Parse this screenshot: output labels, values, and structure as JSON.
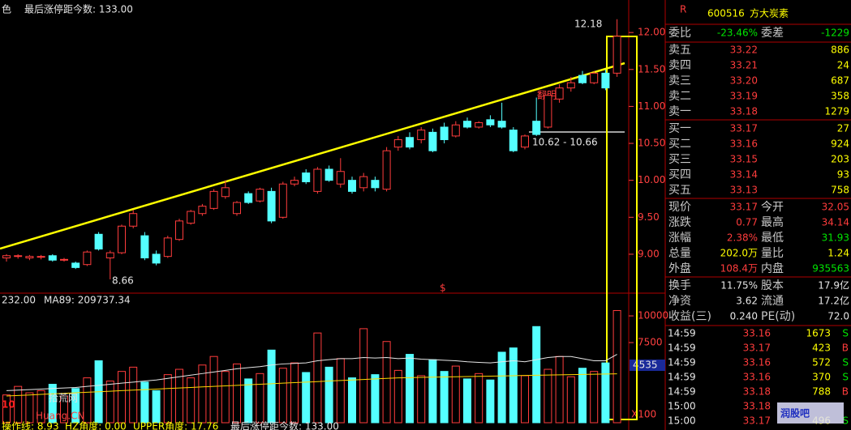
{
  "chart_data": {
    "type": "candlestick",
    "top_prefix": "色",
    "top_label": "最后涨停距今数: 133.00",
    "ylim": [
      8.55,
      12.44
    ],
    "yticks": [
      {
        "value": 12,
        "label": "12.00"
      },
      {
        "value": 11.5,
        "label": "11.50"
      },
      {
        "value": 11,
        "label": "11.00"
      },
      {
        "value": 10.5,
        "label": "10.50"
      },
      {
        "value": 10,
        "label": "10.00"
      },
      {
        "value": 9.5,
        "label": "9.50"
      },
      {
        "value": 9,
        "label": "9.00"
      }
    ],
    "annotations": {
      "high": "12.18",
      "low": "8.66",
      "range": "10.62 - 10.66",
      "mark": "翻明",
      "limit_sign": "$"
    },
    "candles": [
      [
        8.95,
        9.0,
        8.9,
        8.98
      ],
      [
        8.97,
        9.0,
        8.94,
        8.98
      ],
      [
        8.95,
        8.99,
        8.92,
        8.97
      ],
      [
        8.96,
        8.99,
        8.93,
        8.97
      ],
      [
        8.98,
        9.0,
        8.9,
        8.92
      ],
      [
        8.92,
        8.95,
        8.9,
        8.93
      ],
      [
        8.88,
        8.9,
        8.8,
        8.82
      ],
      [
        8.86,
        9.05,
        8.84,
        9.03
      ],
      [
        9.27,
        9.3,
        9.05,
        9.07
      ],
      [
        8.95,
        9.05,
        8.66,
        9.02
      ],
      [
        9.02,
        9.4,
        9.0,
        9.38
      ],
      [
        9.38,
        9.6,
        9.35,
        9.55
      ],
      [
        9.25,
        9.3,
        8.92,
        8.95
      ],
      [
        9.0,
        9.05,
        8.85,
        8.88
      ],
      [
        8.97,
        9.25,
        8.95,
        9.22
      ],
      [
        9.2,
        9.48,
        9.18,
        9.45
      ],
      [
        9.42,
        9.6,
        9.4,
        9.58
      ],
      [
        9.55,
        9.68,
        9.52,
        9.65
      ],
      [
        9.62,
        9.88,
        9.6,
        9.85
      ],
      [
        9.78,
        10.0,
        9.75,
        9.9
      ],
      [
        9.55,
        9.72,
        9.52,
        9.7
      ],
      [
        9.82,
        9.85,
        9.68,
        9.7
      ],
      [
        9.72,
        9.9,
        9.7,
        9.88
      ],
      [
        9.85,
        9.9,
        9.42,
        9.45
      ],
      [
        9.5,
        9.98,
        9.48,
        9.95
      ],
      [
        9.95,
        10.05,
        9.92,
        10.0
      ],
      [
        10.1,
        10.15,
        9.95,
        9.98
      ],
      [
        9.85,
        10.18,
        9.82,
        10.15
      ],
      [
        10.15,
        10.2,
        9.98,
        10.0
      ],
      [
        9.95,
        10.3,
        9.9,
        10.12
      ],
      [
        10.0,
        10.05,
        9.82,
        9.85
      ],
      [
        9.9,
        10.1,
        9.85,
        10.05
      ],
      [
        10.0,
        10.05,
        9.85,
        9.9
      ],
      [
        9.88,
        10.45,
        9.85,
        10.4
      ],
      [
        10.45,
        10.6,
        10.4,
        10.55
      ],
      [
        10.58,
        10.65,
        10.42,
        10.45
      ],
      [
        10.55,
        10.72,
        10.5,
        10.68
      ],
      [
        10.65,
        10.7,
        10.38,
        10.4
      ],
      [
        10.72,
        10.78,
        10.5,
        10.55
      ],
      [
        10.6,
        10.8,
        10.58,
        10.75
      ],
      [
        10.8,
        10.85,
        10.7,
        10.72
      ],
      [
        10.72,
        10.8,
        10.7,
        10.78
      ],
      [
        10.82,
        10.88,
        10.72,
        10.75
      ],
      [
        10.8,
        11.05,
        10.7,
        10.72
      ],
      [
        10.68,
        10.72,
        10.38,
        10.4
      ],
      [
        10.45,
        10.62,
        10.42,
        10.6
      ],
      [
        10.8,
        11.12,
        10.6,
        10.62
      ],
      [
        10.72,
        11.18,
        10.7,
        11.15
      ],
      [
        11.1,
        11.3,
        11.05,
        11.25
      ],
      [
        11.25,
        11.4,
        11.2,
        11.32
      ],
      [
        11.42,
        11.48,
        11.3,
        11.32
      ],
      [
        11.32,
        11.48,
        11.3,
        11.45
      ],
      [
        11.45,
        11.5,
        11.22,
        11.25
      ],
      [
        11.45,
        12.18,
        11.4,
        11.95
      ]
    ],
    "volume": {
      "header_left": "232.00",
      "header_ma": "MA89: 209737.34",
      "ylim": [
        0,
        11900
      ],
      "yticks": [
        10000,
        7500
      ],
      "current": "4535",
      "unit": "X100",
      "values": [
        2600,
        3400,
        2800,
        3000,
        3600,
        2500,
        3200,
        4200,
        5800,
        3900,
        4800,
        5200,
        3800,
        3000,
        4500,
        5000,
        4200,
        5400,
        6200,
        4800,
        5500,
        4100,
        4600,
        6800,
        5100,
        5600,
        4700,
        8400,
        5200,
        6000,
        4200,
        8800,
        4500,
        7600,
        4900,
        6400,
        4400,
        5900,
        4800,
        5300,
        4100,
        4600,
        4000,
        6600,
        7000,
        4400,
        9000,
        5000,
        6200,
        4300,
        5100,
        4800,
        5600,
        10500
      ],
      "ma_white": [
        3000,
        3050,
        3100,
        3150,
        3200,
        3250,
        3300,
        3400,
        3500,
        3600,
        3700,
        3800,
        3900,
        4000,
        4150,
        4300,
        4450,
        4600,
        4750,
        4900,
        5050,
        5150,
        5250,
        5400,
        5500,
        5550,
        5600,
        5800,
        5900,
        6000,
        6000,
        6100,
        6050,
        6100,
        6000,
        6050,
        5950,
        5900,
        5850,
        5800,
        5700,
        5650,
        5600,
        5700,
        5800,
        5700,
        5900,
        6100,
        6200,
        6200,
        6000,
        5800,
        5800,
        6400
      ],
      "ma_yellow": [
        2500,
        2550,
        2600,
        2650,
        2700,
        2750,
        2800,
        2850,
        2900,
        2950,
        3000,
        3050,
        3100,
        3150,
        3200,
        3250,
        3300,
        3350,
        3400,
        3450,
        3500,
        3550,
        3600,
        3650,
        3700,
        3750,
        3800,
        3850,
        3900,
        3950,
        4000,
        4050,
        4100,
        4150,
        4200,
        4220,
        4240,
        4260,
        4280,
        4300,
        4320,
        4340,
        4360,
        4380,
        4400,
        4420,
        4440,
        4460,
        4480,
        4500,
        4520,
        4540,
        4560,
        4580
      ]
    },
    "footer": [
      "操作线: 8.93",
      "HZ角度: 0.00",
      "UPPER角度: 17.76",
      "最后涨停距今数: 133.00"
    ]
  },
  "quote": {
    "flag": "R",
    "code": "600516",
    "name": "方大炭素",
    "ratio": [
      "委比",
      "-23.46%",
      "委差",
      "-1229"
    ],
    "asks": [
      [
        "卖五",
        "33.22",
        "886"
      ],
      [
        "卖四",
        "33.21",
        "24"
      ],
      [
        "卖三",
        "33.20",
        "687"
      ],
      [
        "卖二",
        "33.19",
        "358"
      ],
      [
        "卖一",
        "33.18",
        "1279"
      ]
    ],
    "bids": [
      [
        "买一",
        "33.17",
        "27"
      ],
      [
        "买二",
        "33.16",
        "924"
      ],
      [
        "买三",
        "33.15",
        "203"
      ],
      [
        "买四",
        "33.14",
        "93"
      ],
      [
        "买五",
        "33.13",
        "758"
      ]
    ],
    "stats": [
      [
        "现价",
        "33.17",
        "今开",
        "32.05"
      ],
      [
        "涨跌",
        "0.77",
        "最高",
        "34.14"
      ],
      [
        "涨幅",
        "2.38%",
        "最低",
        "31.93"
      ],
      [
        "总量",
        "202.0万",
        "量比",
        "1.24"
      ],
      [
        "外盘",
        "108.4万",
        "内盘",
        "935563"
      ]
    ],
    "finance": [
      [
        "换手",
        "11.75%",
        "股本",
        "17.9亿"
      ],
      [
        "净资",
        "3.62",
        "流通",
        "17.2亿"
      ],
      [
        "收益(三)",
        "0.240",
        "PE(动)",
        "72.0"
      ]
    ],
    "trades": [
      [
        "14:59",
        "33.16",
        "1673",
        "S"
      ],
      [
        "14:59",
        "33.17",
        "423",
        "B"
      ],
      [
        "14:59",
        "33.16",
        "572",
        "S"
      ],
      [
        "14:59",
        "33.16",
        "370",
        "S"
      ],
      [
        "14:59",
        "33.18",
        "788",
        "B"
      ],
      [
        "15:00",
        "33.18"
      ],
      [
        "15:00",
        "33.17",
        "496",
        "S"
      ]
    ]
  },
  "watermarks": [
    "10",
    "拾荒网",
    "Huang.CN",
    "润股吧"
  ]
}
